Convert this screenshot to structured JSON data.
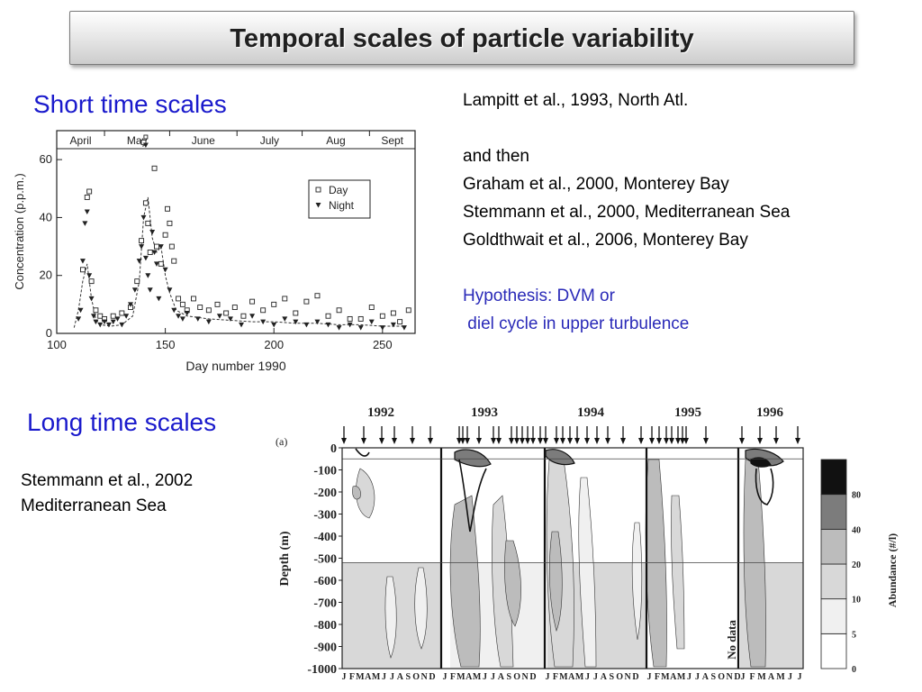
{
  "slide": {
    "title": "Temporal scales of particle variability",
    "short_heading": "Short time scales",
    "long_heading": "Long time scales",
    "refs_short": {
      "line1": "Lampitt et al., 1993, North Atl.",
      "line2": "and then",
      "line3": "Graham et al., 2000, Monterey Bay",
      "line4": "Stemmann et al., 2000, Mediterranean Sea",
      "line5": "Goldthwait et al., 2006, Monterey Bay",
      "hyp1": "Hypothesis: DVM or",
      "hyp2": " diel cycle in upper turbulence"
    },
    "refs_long": {
      "line1": "Stemmann et al., 2002",
      "line2": "Mediterranean Sea"
    },
    "colors": {
      "title_text": "#202020",
      "heading": "#1a1acc",
      "hypothesis": "#2a2ab8"
    }
  },
  "chart_data": [
    {
      "type": "scatter",
      "xlabel": "Day number 1990",
      "ylabel": "Concentration (p.p.m.)",
      "xlim": [
        100,
        265
      ],
      "ylim": [
        0,
        70
      ],
      "xticks": [
        "100",
        "150",
        "200",
        "250"
      ],
      "yticks": [
        "0",
        "20",
        "40",
        "60"
      ],
      "months": [
        "April",
        "May",
        "June",
        "July",
        "Aug",
        "Sept"
      ],
      "legend": {
        "day": "Day",
        "night": "Night",
        "position": "top-right"
      },
      "series": [
        {
          "name": "Day",
          "marker": "open-square",
          "x": [
            112,
            114,
            115,
            116,
            118,
            120,
            122,
            126,
            130,
            134,
            137,
            139,
            140,
            141,
            142,
            143,
            145,
            146,
            148,
            150,
            151,
            152,
            153,
            154,
            156,
            158,
            160,
            163,
            166,
            170,
            174,
            178,
            182,
            186,
            190,
            195,
            200,
            205,
            210,
            215,
            220,
            225,
            230,
            235,
            240,
            245,
            250,
            255,
            258,
            262
          ],
          "y": [
            22,
            47,
            49,
            18,
            8,
            6,
            5,
            6,
            7,
            9,
            18,
            32,
            66,
            45,
            38,
            28,
            57,
            30,
            24,
            34,
            43,
            38,
            30,
            25,
            12,
            10,
            8,
            12,
            9,
            8,
            10,
            7,
            9,
            6,
            11,
            8,
            10,
            12,
            7,
            11,
            13,
            6,
            8,
            5,
            5,
            9,
            6,
            7,
            4,
            8
          ]
        },
        {
          "name": "Night",
          "marker": "filled-triangle",
          "x": [
            110,
            111,
            112,
            113,
            114,
            115,
            116,
            117,
            118,
            120,
            122,
            124,
            126,
            128,
            130,
            132,
            134,
            136,
            138,
            139,
            140,
            141,
            142,
            143,
            144,
            145,
            146,
            147,
            148,
            150,
            152,
            154,
            156,
            158,
            160,
            165,
            170,
            175,
            180,
            185,
            190,
            195,
            200,
            205,
            210,
            215,
            220,
            225,
            230,
            235,
            240,
            245,
            250,
            255,
            260
          ],
          "y": [
            5,
            8,
            25,
            38,
            42,
            20,
            12,
            6,
            4,
            3,
            4,
            3,
            4,
            5,
            3,
            6,
            10,
            15,
            25,
            30,
            40,
            26,
            20,
            15,
            35,
            28,
            24,
            12,
            30,
            22,
            15,
            8,
            6,
            5,
            7,
            5,
            4,
            6,
            5,
            3,
            6,
            4,
            3,
            5,
            4,
            3,
            4,
            3,
            2,
            3,
            2,
            4,
            2,
            3,
            2
          ],
          "overflow_top": [
            141
          ]
        },
        {
          "name": "",
          "line_style": "dashed",
          "x": [
            108,
            110,
            112,
            114,
            116,
            118,
            120,
            125,
            130,
            135,
            138,
            140,
            142,
            144,
            146,
            148,
            150,
            152,
            155,
            160,
            170,
            180,
            190,
            200,
            210,
            220,
            230,
            240,
            250,
            260
          ],
          "y": [
            2,
            8,
            18,
            24,
            12,
            5,
            3,
            2.5,
            3,
            6,
            18,
            40,
            47,
            33,
            28,
            30,
            20,
            14,
            8,
            6,
            5,
            4.5,
            4,
            4,
            3.5,
            3.5,
            3,
            3,
            2.5,
            2.5
          ]
        }
      ]
    },
    {
      "type": "heatmap",
      "panel_label": "(a)",
      "years": [
        "1992",
        "1993",
        "1994",
        "1995",
        "1996"
      ],
      "ylabel": "Depth (m)",
      "yticks": [
        "0",
        "-100",
        "-200",
        "-300",
        "-400",
        "-500",
        "-600",
        "-700",
        "-800",
        "-900",
        "-1000"
      ],
      "ylim": [
        -1000,
        0
      ],
      "month_letters": [
        "J",
        "F",
        "M",
        "A",
        "M",
        "J",
        "J",
        "A",
        "S",
        "O",
        "N",
        "D"
      ],
      "month_letters_1996": [
        "J",
        "F",
        "M",
        "A",
        "M",
        "J",
        "J"
      ],
      "no_data_label": "No data",
      "colorbar": {
        "label": "Abundance (#/l)",
        "levels": [
          "0",
          "5",
          "10",
          "20",
          "40",
          "80"
        ],
        "colors": [
          "#ffffff",
          "#f0f0f0",
          "#d8d8d8",
          "#bcbcbc",
          "#7c7c7c",
          "#111111"
        ]
      }
    }
  ]
}
